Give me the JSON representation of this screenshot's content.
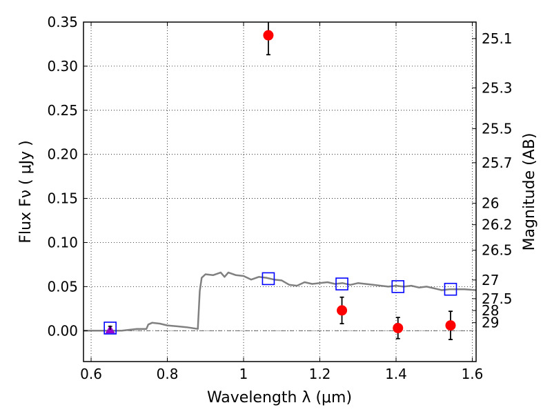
{
  "chart_data": {
    "type": "scatter",
    "xlabel": "Wavelength  λ (μm)",
    "ylabel": "Flux  Fν  ( μJy )",
    "y2label": "Magnitude (AB)",
    "xlim": [
      0.58,
      1.61
    ],
    "ylim": [
      -0.035,
      0.35
    ],
    "grid": true,
    "x_ticks": [
      0.6,
      0.8,
      1.0,
      1.2,
      1.4,
      1.6
    ],
    "x_tick_labels": [
      "0.6",
      "0.8",
      "1",
      "1.2",
      "1.4",
      "1.6"
    ],
    "y_ticks": [
      0.0,
      0.05,
      0.1,
      0.15,
      0.2,
      0.25,
      0.3,
      0.35
    ],
    "y_tick_labels": [
      "0.00",
      "0.05",
      "0.10",
      "0.15",
      "0.20",
      "0.25",
      "0.30",
      "0.35"
    ],
    "y2_ticks": [
      {
        "label": "25.1",
        "flux": 0.3313
      },
      {
        "label": "25.3",
        "flux": 0.2754
      },
      {
        "label": "25.5",
        "flux": 0.2291
      },
      {
        "label": "25.7",
        "flux": 0.1905
      },
      {
        "label": "26",
        "flux": 0.1445
      },
      {
        "label": "26.2",
        "flux": 0.1202
      },
      {
        "label": "26.5",
        "flux": 0.0912
      },
      {
        "label": "27",
        "flux": 0.0575
      },
      {
        "label": "27.5",
        "flux": 0.0363
      },
      {
        "label": "28",
        "flux": 0.0229
      },
      {
        "label": "29",
        "flux": 0.0091
      }
    ],
    "series": [
      {
        "kind": "line",
        "color": "#808080",
        "x": [
          0.58,
          0.62,
          0.65,
          0.68,
          0.7,
          0.72,
          0.745,
          0.75,
          0.76,
          0.78,
          0.8,
          0.85,
          0.88,
          0.885,
          0.89,
          0.9,
          0.92,
          0.94,
          0.95,
          0.96,
          0.98,
          1.0,
          1.02,
          1.04,
          1.06,
          1.08,
          1.1,
          1.12,
          1.14,
          1.16,
          1.18,
          1.2,
          1.22,
          1.24,
          1.26,
          1.28,
          1.3,
          1.32,
          1.34,
          1.36,
          1.38,
          1.4,
          1.42,
          1.44,
          1.46,
          1.48,
          1.5,
          1.52,
          1.54,
          1.56,
          1.58,
          1.61
        ],
        "y": [
          0.0,
          0.0,
          0.0,
          0.0,
          0.001,
          0.002,
          0.002,
          0.007,
          0.009,
          0.008,
          0.006,
          0.004,
          0.002,
          0.045,
          0.06,
          0.064,
          0.063,
          0.066,
          0.061,
          0.066,
          0.063,
          0.062,
          0.058,
          0.061,
          0.06,
          0.058,
          0.057,
          0.052,
          0.051,
          0.055,
          0.053,
          0.054,
          0.055,
          0.053,
          0.054,
          0.052,
          0.054,
          0.053,
          0.052,
          0.051,
          0.05,
          0.051,
          0.05,
          0.051,
          0.049,
          0.05,
          0.048,
          0.046,
          0.047,
          0.047,
          0.047,
          0.046
        ]
      },
      {
        "kind": "model-squares",
        "color": "#0000ff",
        "x": [
          0.65,
          1.065,
          1.258,
          1.405,
          1.543
        ],
        "y": [
          0.003,
          0.059,
          0.053,
          0.05,
          0.047
        ]
      },
      {
        "kind": "observed-points",
        "color": "#ff0000",
        "x": [
          1.065,
          1.258,
          1.405,
          1.543
        ],
        "y": [
          0.335,
          0.023,
          0.003,
          0.006
        ],
        "yerr": [
          0.022,
          0.015,
          0.012,
          0.016
        ]
      },
      {
        "kind": "upper-limit",
        "color": "#9400d3",
        "x": [
          0.65
        ],
        "y": [
          0.001
        ],
        "yerr": [
          0.004
        ]
      }
    ]
  }
}
